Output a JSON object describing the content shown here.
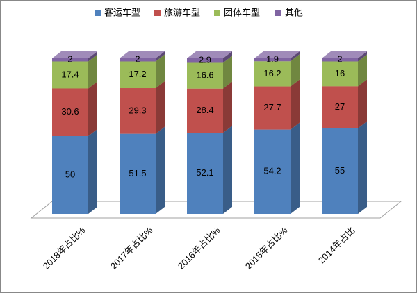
{
  "chart_data": {
    "type": "bar3d-stacked",
    "categories": [
      "2018年占比%",
      "2017年占比%",
      "2016年占比%",
      "2015年占比%",
      "2014年占比"
    ],
    "series": [
      {
        "name": "客运车型",
        "color": "#4f81bd",
        "values": [
          50,
          51.5,
          52.1,
          54.2,
          55
        ]
      },
      {
        "name": "旅游车型",
        "color": "#c0504d",
        "values": [
          30.6,
          29.3,
          28.4,
          27.7,
          27
        ]
      },
      {
        "name": "团体车型",
        "color": "#9bbb59",
        "values": [
          17.4,
          17.2,
          16.6,
          16.2,
          16
        ]
      },
      {
        "name": "其他",
        "color": "#8064a2",
        "values": [
          2,
          2,
          2.9,
          1.9,
          2
        ]
      }
    ]
  }
}
